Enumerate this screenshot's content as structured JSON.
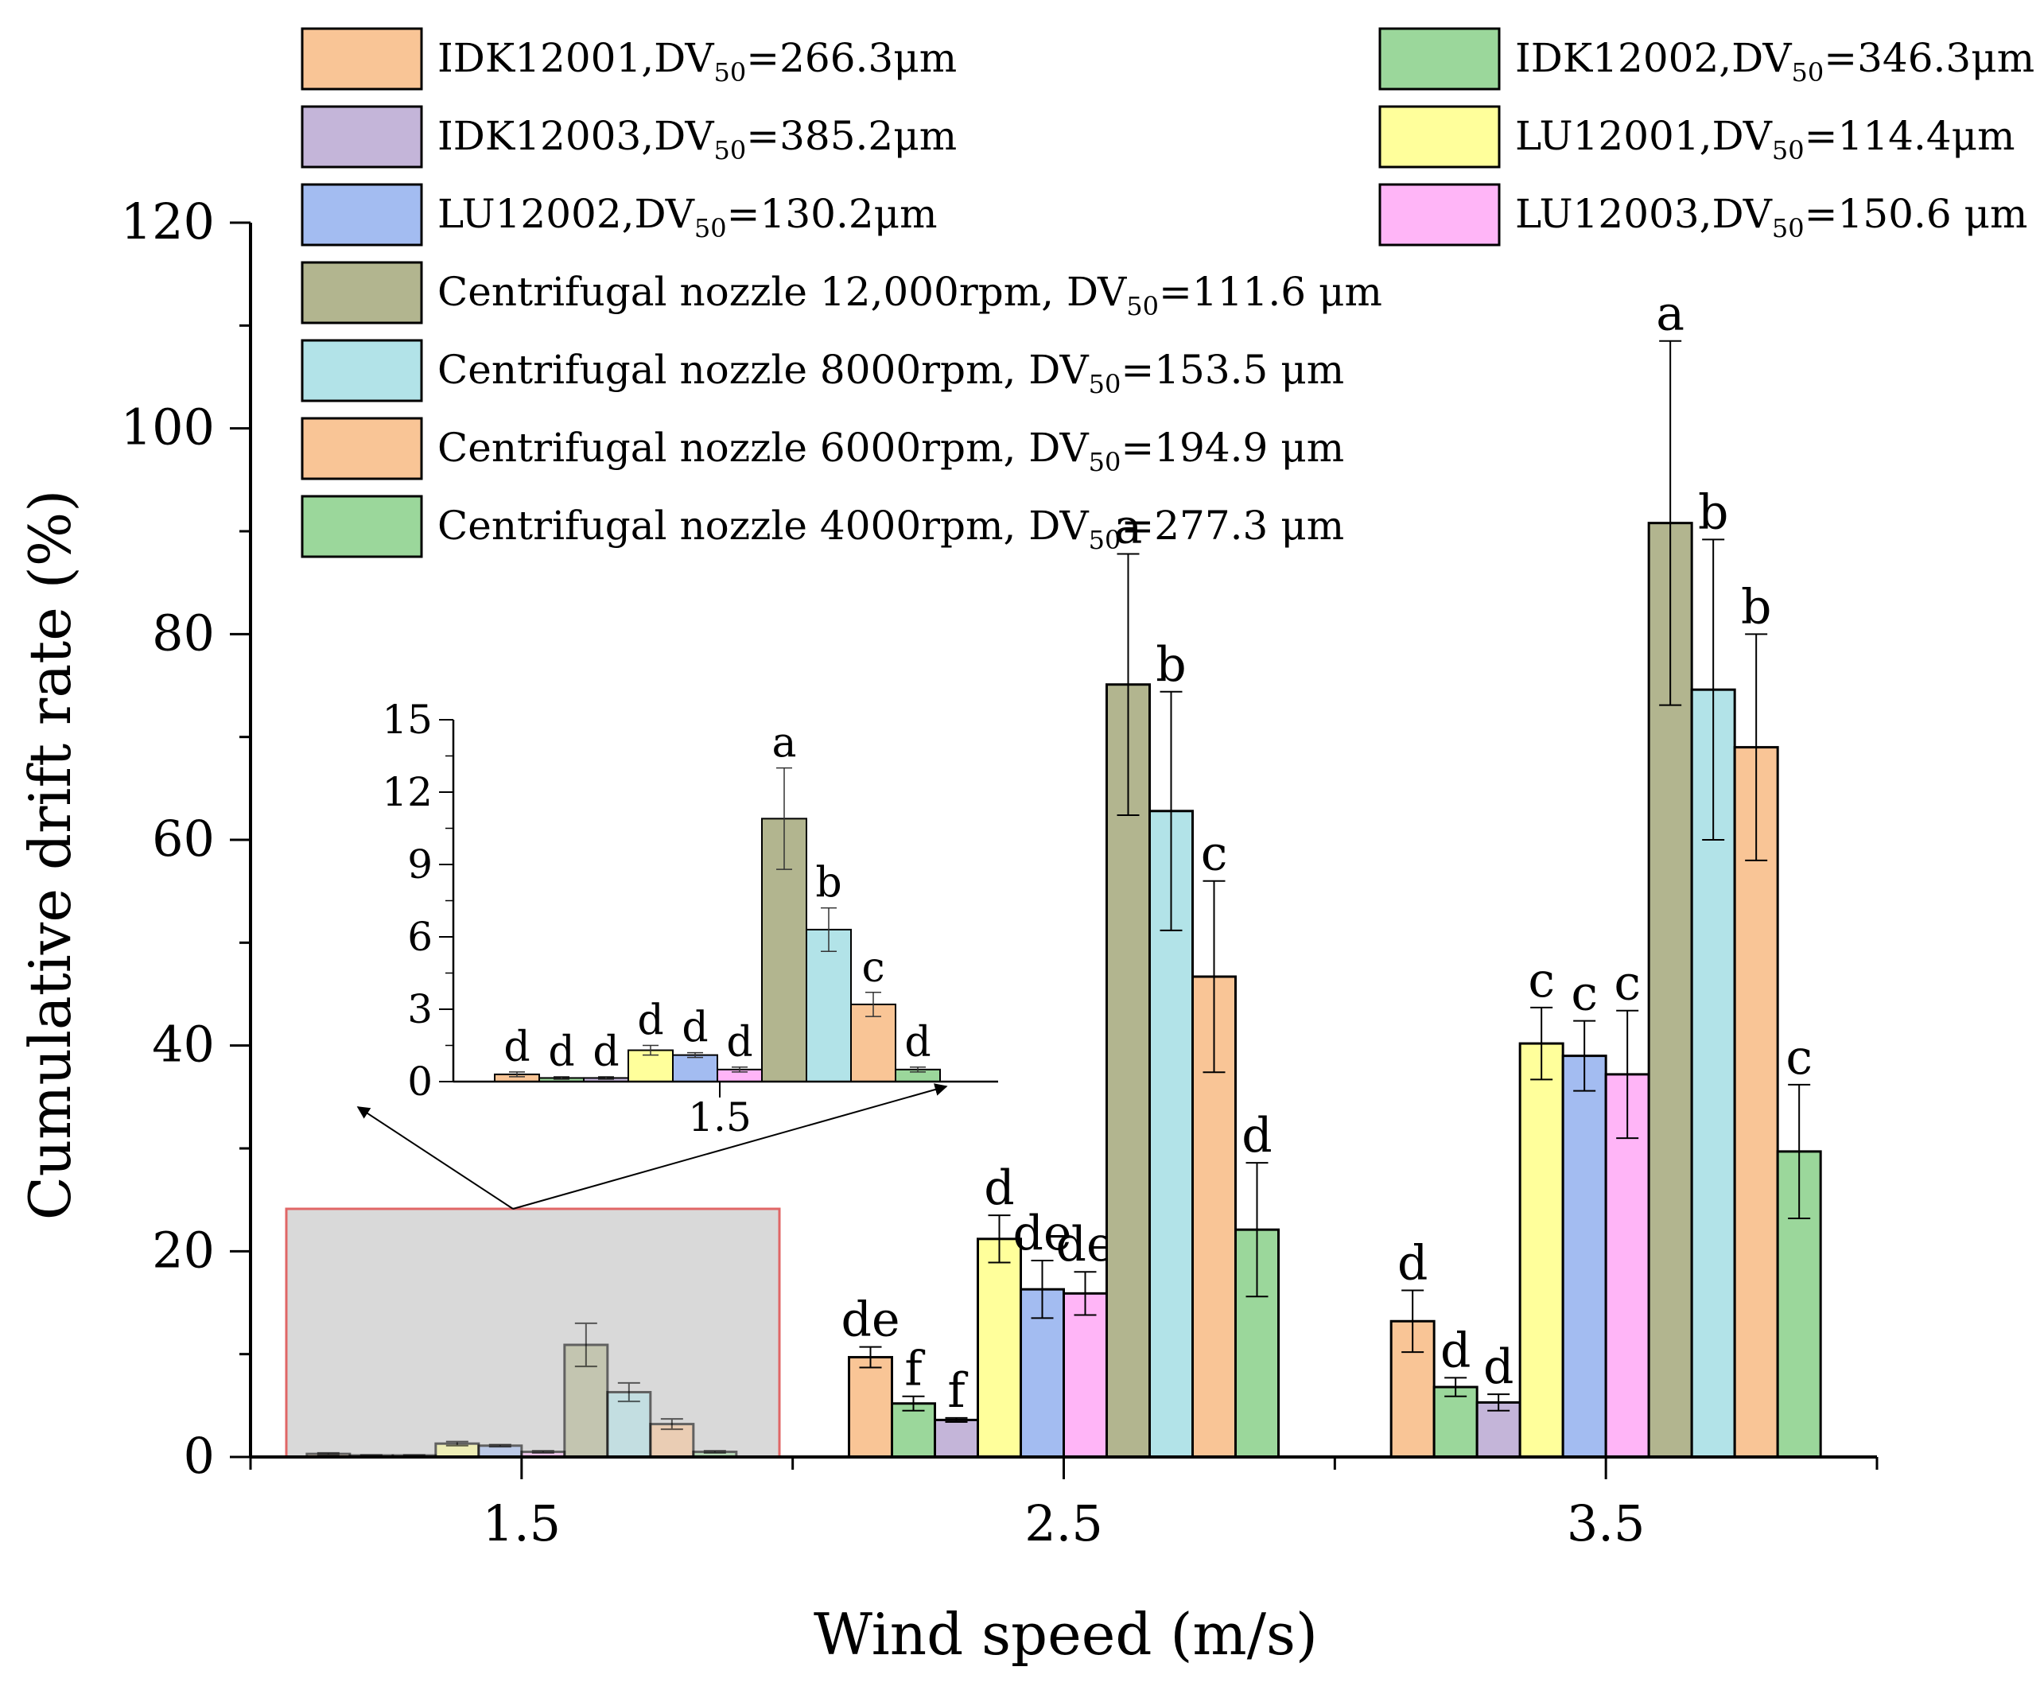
{
  "chart_data": {
    "type": "bar",
    "xlabel": "Wind speed (m/s)",
    "ylabel": "Cumulative drift rate (%)",
    "ylim": [
      0,
      120
    ],
    "yticks": [
      0,
      20,
      40,
      60,
      80,
      100,
      120
    ],
    "categories": [
      "1.5",
      "2.5",
      "3.5"
    ],
    "legend_placement": "top",
    "series": [
      {
        "name": "IDK12001",
        "dv50": "=266.3μm",
        "color": "#f9c596",
        "values": [
          0.3,
          9.7,
          13.2
        ],
        "errors": [
          0.1,
          1.0,
          3.0
        ],
        "letters": [
          "d",
          "de",
          "d"
        ]
      },
      {
        "name": "IDK12002",
        "dv50": "=346.3μm",
        "color": "#9bd79b",
        "values": [
          0.15,
          5.2,
          6.8
        ],
        "errors": [
          0.05,
          0.7,
          0.9
        ],
        "letters": [
          "d",
          "f",
          "d"
        ]
      },
      {
        "name": "IDK12003",
        "dv50": "=385.2μm",
        "color": "#c4b5d9",
        "values": [
          0.15,
          3.6,
          5.3
        ],
        "errors": [
          0.05,
          0.2,
          0.8
        ],
        "letters": [
          "d",
          "f",
          "d"
        ]
      },
      {
        "name": "LU12001",
        "dv50": "=114.4μm",
        "color": "#ffff9b",
        "values": [
          1.3,
          21.2,
          40.2
        ],
        "errors": [
          0.2,
          2.3,
          3.5
        ],
        "letters": [
          "d",
          "d",
          "c"
        ]
      },
      {
        "name": "LU12002",
        "dv50": "=130.2μm",
        "color": "#a3bcf1",
        "values": [
          1.1,
          16.3,
          39.0
        ],
        "errors": [
          0.1,
          2.8,
          3.4
        ],
        "letters": [
          "d",
          "de",
          "c"
        ]
      },
      {
        "name": "LU12003",
        "dv50": "=150.6 μm",
        "color": "#ffb5f7",
        "values": [
          0.5,
          15.9,
          37.2
        ],
        "errors": [
          0.1,
          2.1,
          6.2
        ],
        "letters": [
          "d",
          "de",
          "c"
        ]
      },
      {
        "name": "Centrifugal nozzle 12,000rpm, DV",
        "dv50": "=111.6 μm",
        "color": "#b2b58f",
        "values": [
          10.9,
          75.1,
          90.8
        ],
        "errors": [
          2.1,
          12.7,
          17.7
        ],
        "letters": [
          "a",
          "a",
          "a"
        ]
      },
      {
        "name": "Centrifugal nozzle 8000rpm, DV",
        "dv50": "=153.5 μm",
        "color": "#b2e3e8",
        "values": [
          6.3,
          62.8,
          74.6
        ],
        "errors": [
          0.9,
          11.6,
          14.6
        ],
        "letters": [
          "b",
          "b",
          "b"
        ]
      },
      {
        "name": "Centrifugal nozzle 6000rpm, DV",
        "dv50": "=194.9 μm",
        "color": "#f9c596",
        "values": [
          3.2,
          46.7,
          69.0
        ],
        "errors": [
          0.5,
          9.3,
          11.0
        ],
        "letters": [
          "c",
          "c",
          "b"
        ]
      },
      {
        "name": "Centrifugal nozzle 4000rpm, DV",
        "dv50": "=277.3 μm",
        "color": "#9bd79b",
        "values": [
          0.5,
          22.1,
          29.7
        ],
        "errors": [
          0.1,
          6.5,
          6.5
        ],
        "letters": [
          "d",
          "d",
          "c"
        ]
      }
    ],
    "legend_subscript": "50",
    "legend_short_prefix": ",DV",
    "inset": {
      "category": "1.5",
      "ylim": [
        0,
        15
      ],
      "yticks": [
        "0",
        "3",
        "6",
        "9",
        "12",
        "15"
      ]
    }
  }
}
